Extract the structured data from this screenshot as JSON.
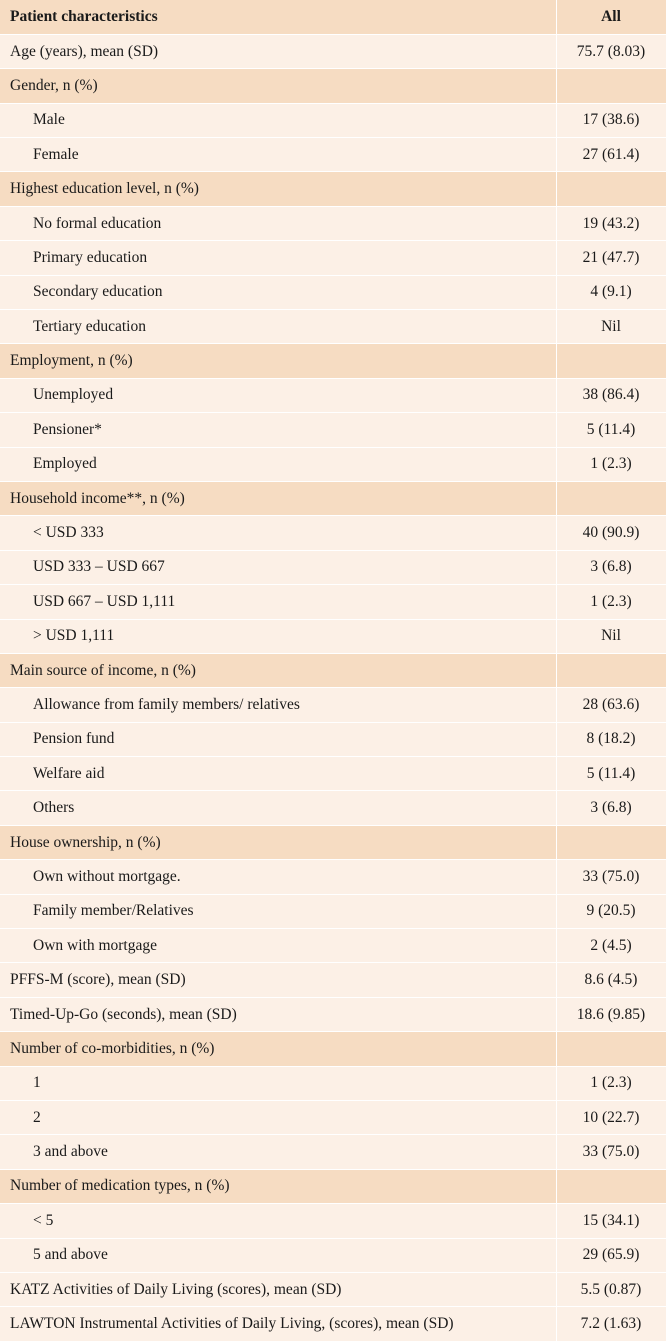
{
  "table": {
    "header": {
      "label": "Patient characteristics",
      "value": "All"
    },
    "rows": [
      {
        "kind": "stat",
        "label": "Age (years), mean (SD)",
        "value": "75.7 (8.03)"
      },
      {
        "kind": "section",
        "label": "Gender, n (%)",
        "value": ""
      },
      {
        "kind": "item",
        "label": "Male",
        "value": "17 (38.6)"
      },
      {
        "kind": "item",
        "label": "Female",
        "value": "27 (61.4)"
      },
      {
        "kind": "section",
        "label": "Highest education level, n (%)",
        "value": ""
      },
      {
        "kind": "item",
        "label": "No formal education",
        "value": "19 (43.2)"
      },
      {
        "kind": "item",
        "label": "Primary education",
        "value": "21 (47.7)"
      },
      {
        "kind": "item",
        "label": "Secondary education",
        "value": "4 (9.1)"
      },
      {
        "kind": "item",
        "label": "Tertiary education",
        "value": "Nil"
      },
      {
        "kind": "section",
        "label": "Employment, n (%)",
        "value": ""
      },
      {
        "kind": "item",
        "label": "Unemployed",
        "value": "38 (86.4)"
      },
      {
        "kind": "item",
        "label": "Pensioner*",
        "value": "5 (11.4)"
      },
      {
        "kind": "item",
        "label": "Employed",
        "value": "1 (2.3)"
      },
      {
        "kind": "section",
        "label": "Household income**, n (%)",
        "value": ""
      },
      {
        "kind": "item",
        "label": "< USD 333",
        "value": "40 (90.9)"
      },
      {
        "kind": "item",
        "label": "USD 333 – USD 667",
        "value": "3 (6.8)"
      },
      {
        "kind": "item",
        "label": "USD 667 – USD 1,111",
        "value": "1 (2.3)"
      },
      {
        "kind": "item",
        "label": "> USD 1,111",
        "value": "Nil"
      },
      {
        "kind": "section",
        "label": "Main source of income, n (%)",
        "value": ""
      },
      {
        "kind": "item",
        "label": "Allowance from family members/ relatives",
        "value": "28 (63.6)"
      },
      {
        "kind": "item",
        "label": "Pension fund",
        "value": "8 (18.2)"
      },
      {
        "kind": "item",
        "label": "Welfare aid",
        "value": "5 (11.4)"
      },
      {
        "kind": "item",
        "label": "Others",
        "value": "3 (6.8)"
      },
      {
        "kind": "section",
        "label": "House ownership, n (%)",
        "value": ""
      },
      {
        "kind": "item",
        "label": "Own without mortgage.",
        "value": "33 (75.0)"
      },
      {
        "kind": "item",
        "label": "Family member/Relatives",
        "value": "9 (20.5)"
      },
      {
        "kind": "item",
        "label": "Own with mortgage",
        "value": "2 (4.5)"
      },
      {
        "kind": "stat",
        "label": "PFFS-M (score), mean (SD)",
        "value": "8.6 (4.5)"
      },
      {
        "kind": "stat",
        "label": "Timed-Up-Go (seconds), mean (SD)",
        "value": "18.6 (9.85)"
      },
      {
        "kind": "section",
        "label": "Number of co-morbidities, n (%)",
        "value": ""
      },
      {
        "kind": "item",
        "label": "1",
        "value": "1 (2.3)"
      },
      {
        "kind": "item",
        "label": "2",
        "value": "10 (22.7)"
      },
      {
        "kind": "item",
        "label": "3 and above",
        "value": "33 (75.0)"
      },
      {
        "kind": "section",
        "label": "Number of medication types, n (%)",
        "value": ""
      },
      {
        "kind": "item",
        "label": "< 5",
        "value": "15 (34.1)"
      },
      {
        "kind": "item",
        "label": "5 and above",
        "value": "29 (65.9)"
      },
      {
        "kind": "stat",
        "label": "KATZ Activities of Daily Living (scores), mean (SD)",
        "value": "5.5 (0.87)"
      },
      {
        "kind": "stat",
        "label": "LAWTON Instrumental Activities of Daily Living, (scores), mean (SD)",
        "value": "7.2 (1.63)"
      }
    ]
  }
}
